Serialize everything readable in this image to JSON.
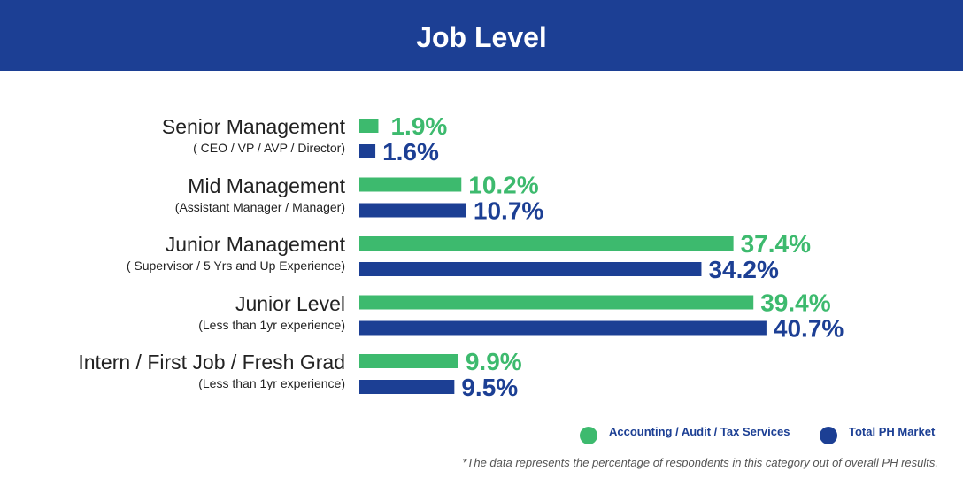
{
  "title": "Job Level",
  "chart_data": {
    "type": "bar",
    "orientation": "horizontal",
    "title": "Job Level",
    "categories": [
      {
        "name": "Senior Management",
        "sub": "( CEO / VP / AVP / Director)"
      },
      {
        "name": "Mid Management",
        "sub": "(Assistant Manager / Manager)"
      },
      {
        "name": "Junior Management",
        "sub": "( Supervisor / 5 Yrs and Up Experience)"
      },
      {
        "name": "Junior Level",
        "sub": "(Less than 1yr experience)"
      },
      {
        "name": "Intern / First Job / Fresh Grad",
        "sub": "(Less than 1yr experience)"
      }
    ],
    "series": [
      {
        "name": "Accounting / Audit / Tax Services",
        "color": "#3dba6e",
        "values": [
          1.9,
          10.2,
          37.4,
          39.4,
          9.9
        ],
        "labels": [
          "1.9%",
          "10.2%",
          "37.4%",
          "39.4%",
          "9.9%"
        ]
      },
      {
        "name": "Total PH Market",
        "color": "#1c3f94",
        "values": [
          1.6,
          10.7,
          34.2,
          40.7,
          9.5
        ],
        "labels": [
          "1.6%",
          "10.7%",
          "34.2%",
          "40.7%",
          "9.5%"
        ]
      }
    ],
    "legend_position": "bottom-right"
  },
  "note": "*The data represents the percentage of respondents in this category out of overall PH results."
}
